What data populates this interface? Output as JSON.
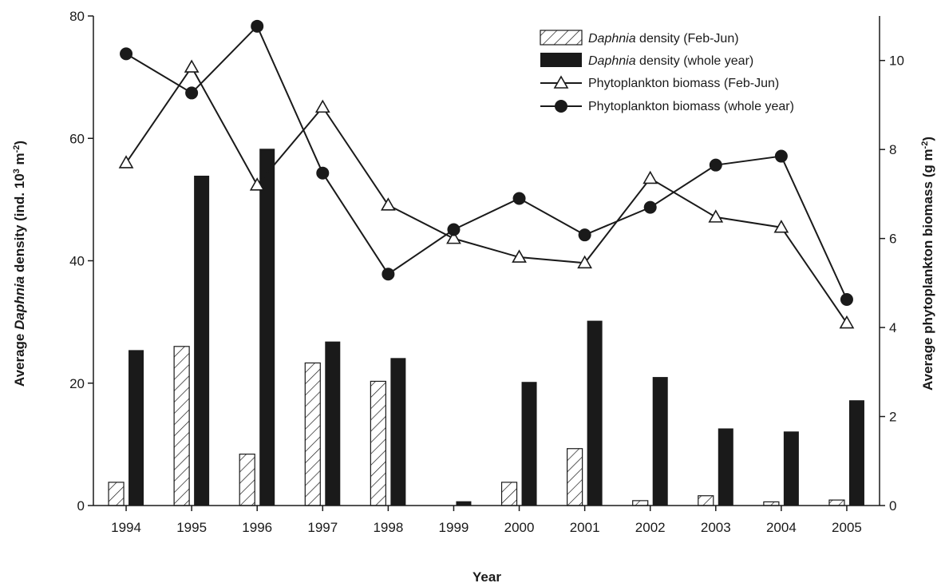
{
  "chart_data": {
    "type": "bar",
    "categories": [
      "1994",
      "1995",
      "1996",
      "1997",
      "1998",
      "1999",
      "2000",
      "2001",
      "2002",
      "2003",
      "2004",
      "2005"
    ],
    "xlabel": "Year",
    "ylabel": {
      "pre": "Average ",
      "ital": "Daphnia",
      "post": " density (ind. 10",
      "sup1": "3",
      "mid": " m",
      "sup2": "-2",
      "end": ")"
    },
    "y2label": {
      "pre": "Average phytoplankton biomass (g m",
      "sup": "-2",
      "end": ")"
    },
    "ylim": [
      0,
      80
    ],
    "yticks": [
      0,
      20,
      40,
      60,
      80
    ],
    "y2lim": [
      0,
      11
    ],
    "y2ticks": [
      0,
      2,
      4,
      6,
      8,
      10
    ],
    "bars": [
      {
        "name": {
          "ital": "Daphnia",
          "rest": " density (Feb-Jun)"
        },
        "style": "hatched",
        "values": [
          3.8,
          26.0,
          8.4,
          23.3,
          20.3,
          0.0,
          3.8,
          9.3,
          0.8,
          1.6,
          0.6,
          0.9
        ]
      },
      {
        "name": {
          "ital": "Daphnia",
          "rest": " density (whole year)"
        },
        "style": "solid",
        "values": [
          25.4,
          53.9,
          58.3,
          26.8,
          24.1,
          0.7,
          20.2,
          30.2,
          21.0,
          12.6,
          12.1,
          17.2
        ]
      }
    ],
    "lines": [
      {
        "name": "Phytoplankton biomass (Feb-Jun)",
        "marker": "triangle-open",
        "values": [
          7.7,
          9.85,
          7.2,
          8.95,
          6.75,
          6.0,
          5.58,
          5.45,
          7.35,
          6.48,
          6.25,
          4.1
        ]
      },
      {
        "name": "Phytoplankton biomass (whole year)",
        "marker": "circle-filled",
        "values": [
          10.15,
          9.27,
          10.77,
          7.47,
          5.2,
          6.2,
          6.9,
          6.08,
          6.7,
          7.65,
          7.85,
          4.63
        ]
      }
    ],
    "legend_position": "top-right",
    "grid": false
  }
}
